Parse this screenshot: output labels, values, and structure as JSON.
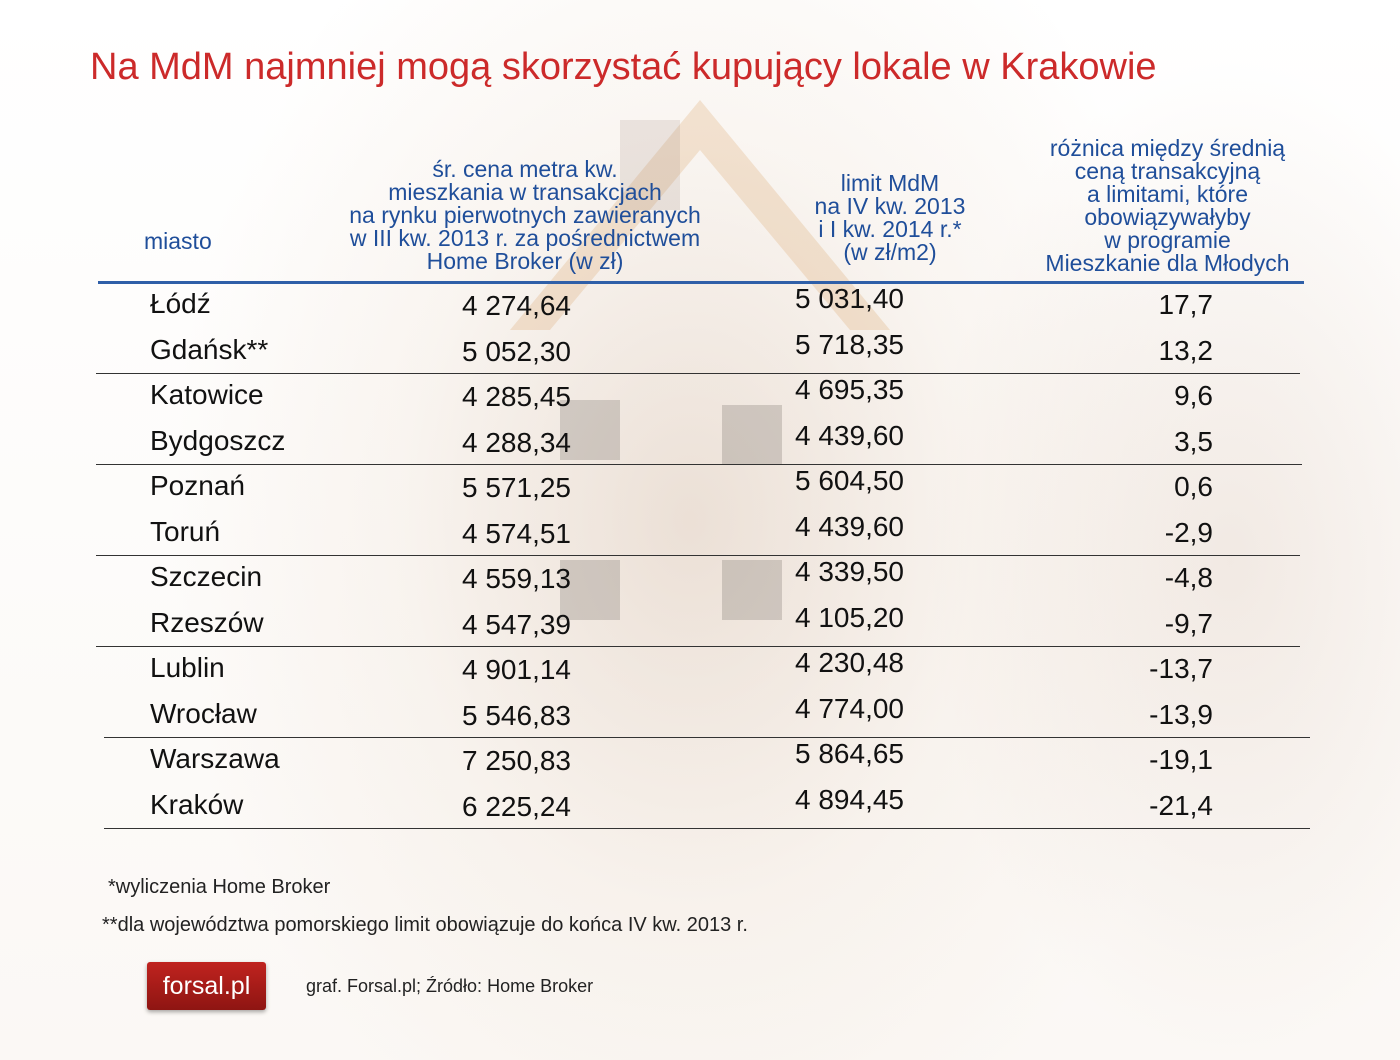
{
  "title": "Na MdM najmniej mogą skorzystać kupujący lokale w Krakowie",
  "chart_data": {
    "type": "table",
    "columns": [
      {
        "key": "city",
        "lines": [
          "miasto"
        ]
      },
      {
        "key": "avg_price",
        "lines": [
          "śr. cena metra kw.",
          "mieszkania w transakcjach",
          "na rynku pierwotnych zawieranych",
          "w III kw. 2013 r. za pośrednictwem",
          "Home Broker (w zł)"
        ]
      },
      {
        "key": "limit",
        "lines": [
          "limit MdM",
          "na IV kw. 2013",
          "i I kw. 2014 r.*",
          "(w zł/m2)"
        ]
      },
      {
        "key": "difference",
        "lines": [
          "różnica między średnią",
          "ceną transakcyjną",
          "a limitami, które",
          "obowiązywałyby",
          "w programie",
          "Mieszkanie dla Młodych"
        ]
      }
    ],
    "rows": [
      {
        "city": "Łódź",
        "avg_price": "4 274,64",
        "limit": "5 031,40",
        "difference": "17,7"
      },
      {
        "city": "Gdańsk**",
        "avg_price": "5 052,30",
        "limit": "5 718,35",
        "difference": "13,2"
      },
      {
        "city": "Katowice",
        "avg_price": "4 285,45",
        "limit": "4 695,35",
        "difference": "9,6"
      },
      {
        "city": "Bydgoszcz",
        "avg_price": "4 288,34",
        "limit": "4 439,60",
        "difference": "3,5"
      },
      {
        "city": "Poznań",
        "avg_price": "5 571,25",
        "limit": "5 604,50",
        "difference": "0,6"
      },
      {
        "city": "Toruń",
        "avg_price": "4 574,51",
        "limit": "4 439,60",
        "difference": "-2,9"
      },
      {
        "city": "Szczecin",
        "avg_price": "4 559,13",
        "limit": "4 339,50",
        "difference": "-4,8"
      },
      {
        "city": "Rzeszów",
        "avg_price": "4 547,39",
        "limit": "4 105,20",
        "difference": "-9,7"
      },
      {
        "city": "Lublin",
        "avg_price": "4 901,14",
        "limit": "4 230,48",
        "difference": "-13,7"
      },
      {
        "city": "Wrocław",
        "avg_price": "5 546,83",
        "limit": "4 774,00",
        "difference": "-13,9"
      },
      {
        "city": "Warszawa",
        "avg_price": "7 250,83",
        "limit": "5 864,65",
        "difference": "-19,1"
      },
      {
        "city": "Kraków",
        "avg_price": "6 225,24",
        "limit": "4 894,45",
        "difference": "-21,4"
      }
    ]
  },
  "notes": [
    "*wyliczenia Home Broker",
    "**dla województwa pomorskiego limit obowiązuje do końca IV kw. 2013 r."
  ],
  "logo_text": "forsal.pl",
  "source": "graf. Forsal.pl; Źródło: Home Broker",
  "colors": {
    "title": "#cc2a2a",
    "header": "#1f4e9a",
    "header_rule": "#2f5fa8",
    "logo": "#b51e1b"
  }
}
